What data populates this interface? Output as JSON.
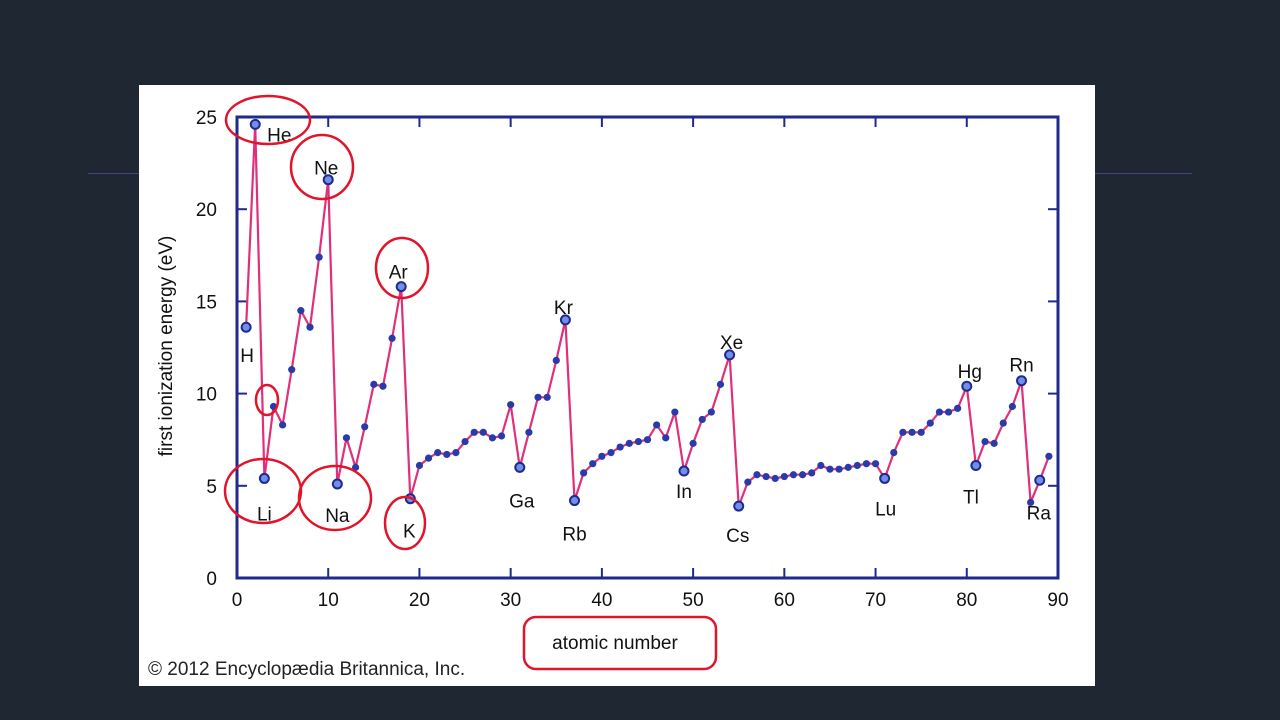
{
  "copyright": "© 2012 Encyclopædia Britannica, Inc.",
  "colors": {
    "background": "#1f2733",
    "panel": "#ffffff",
    "frame": "#1f2a8c",
    "line": "#e0307a",
    "point_fill": "#2a3aa8",
    "highlight_fill": "#6f8fe8",
    "annotation": "#e0142a",
    "accent_line": "#4b3f8c"
  },
  "chart_data": {
    "type": "line",
    "xlabel": "atomic number",
    "ylabel": "first ionization energy (eV)",
    "xlim": [
      0,
      90
    ],
    "ylim": [
      0,
      25
    ],
    "xticks": [
      "0",
      "10",
      "20",
      "30",
      "40",
      "50",
      "60",
      "70",
      "80",
      "90"
    ],
    "yticks": [
      "0",
      "5",
      "10",
      "15",
      "20",
      "25"
    ],
    "grid": false,
    "x": [
      1,
      2,
      3,
      4,
      5,
      6,
      7,
      8,
      9,
      10,
      11,
      12,
      13,
      14,
      15,
      16,
      17,
      18,
      19,
      20,
      21,
      22,
      23,
      24,
      25,
      26,
      27,
      28,
      29,
      30,
      31,
      32,
      33,
      34,
      35,
      36,
      37,
      38,
      39,
      40,
      41,
      42,
      43,
      44,
      45,
      46,
      47,
      48,
      49,
      50,
      51,
      52,
      53,
      54,
      55,
      56,
      57,
      58,
      59,
      60,
      61,
      62,
      63,
      64,
      65,
      66,
      67,
      68,
      69,
      70,
      71,
      72,
      73,
      74,
      75,
      76,
      77,
      78,
      79,
      80,
      81,
      82,
      83,
      84,
      85,
      86,
      87,
      88,
      89
    ],
    "values": [
      13.6,
      24.6,
      5.4,
      9.3,
      8.3,
      11.3,
      14.5,
      13.6,
      17.4,
      21.6,
      5.1,
      7.6,
      6.0,
      8.2,
      10.5,
      10.4,
      13.0,
      15.8,
      4.3,
      6.1,
      6.5,
      6.8,
      6.7,
      6.8,
      7.4,
      7.9,
      7.9,
      7.6,
      7.7,
      9.4,
      6.0,
      7.9,
      9.8,
      9.8,
      11.8,
      14.0,
      4.2,
      5.7,
      6.2,
      6.6,
      6.8,
      7.1,
      7.3,
      7.4,
      7.5,
      8.3,
      7.6,
      9.0,
      5.8,
      7.3,
      8.6,
      9.0,
      10.5,
      12.1,
      3.9,
      5.2,
      5.6,
      5.5,
      5.4,
      5.5,
      5.6,
      5.6,
      5.7,
      6.1,
      5.9,
      5.9,
      6.0,
      6.1,
      6.2,
      6.2,
      5.4,
      6.8,
      7.9,
      7.9,
      7.9,
      8.4,
      9.0,
      9.0,
      9.2,
      10.4,
      6.1,
      7.4,
      7.3,
      8.4,
      9.3,
      10.7,
      4.1,
      5.3,
      6.6
    ],
    "highlighted": [
      {
        "z": 1,
        "label": "H"
      },
      {
        "z": 2,
        "label": "He"
      },
      {
        "z": 3,
        "label": "Li"
      },
      {
        "z": 10,
        "label": "Ne"
      },
      {
        "z": 11,
        "label": "Na"
      },
      {
        "z": 18,
        "label": "Ar"
      },
      {
        "z": 19,
        "label": "K"
      },
      {
        "z": 31,
        "label": "Ga"
      },
      {
        "z": 36,
        "label": "Kr"
      },
      {
        "z": 37,
        "label": "Rb"
      },
      {
        "z": 49,
        "label": "In"
      },
      {
        "z": 54,
        "label": "Xe"
      },
      {
        "z": 55,
        "label": "Cs"
      },
      {
        "z": 71,
        "label": "Lu"
      },
      {
        "z": 80,
        "label": "Hg"
      },
      {
        "z": 81,
        "label": "Tl"
      },
      {
        "z": 86,
        "label": "Rn"
      },
      {
        "z": 88,
        "label": "Ra"
      }
    ]
  }
}
